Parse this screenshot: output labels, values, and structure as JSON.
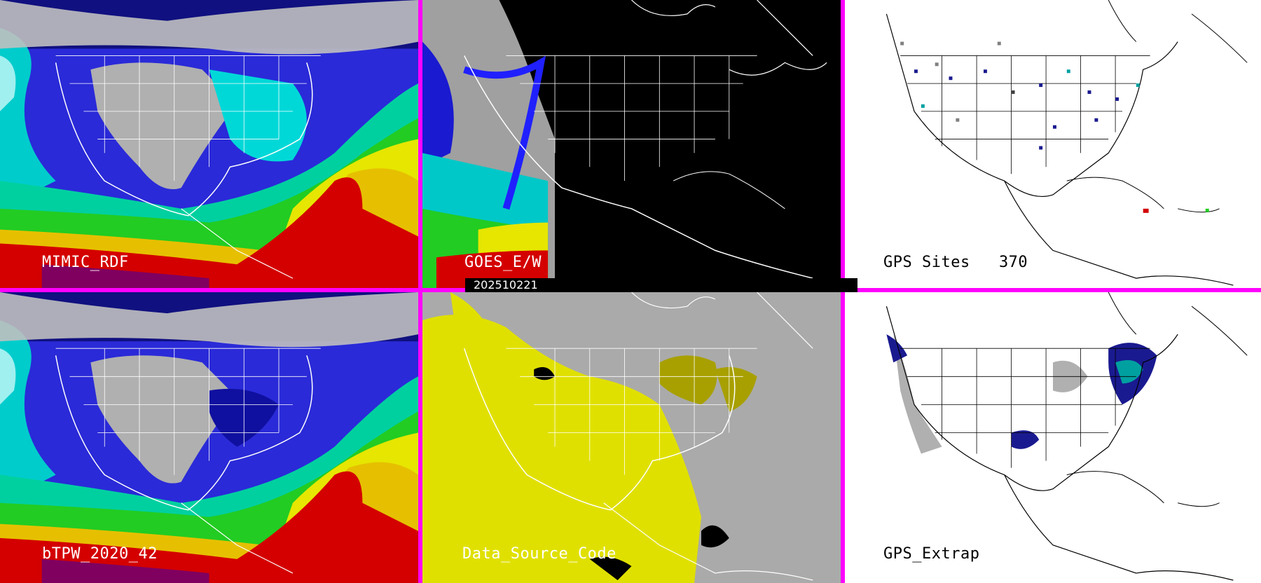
{
  "panels": [
    {
      "label": "MIMIC_RDF",
      "type": "tpw",
      "label_color": "#ffffff"
    },
    {
      "label": "GOES_E/W",
      "type": "goes",
      "label_color": "#ffffff"
    },
    {
      "label": "GPS Sites   370",
      "type": "gps_sites",
      "label_color": "#000000"
    },
    {
      "label": "bTPW_2020_42",
      "type": "tpw",
      "label_color": "#ffffff"
    },
    {
      "label": "Data_Source_Code",
      "type": "source",
      "label_color": "#ffffff"
    },
    {
      "label": "GPS_Extrap",
      "type": "gps_extrap",
      "label_color": "#000000"
    }
  ],
  "date_label": "202510221",
  "colors": {
    "separator": "#ff00ff",
    "ocean_tpw_high": "#d40000",
    "ocean_tpw_mid": "#e6e600",
    "ocean_tpw_low": "#00e0e0",
    "land_dry": "#b0b0b0",
    "goes_background": "#000000",
    "source_background": "#aaaaaa",
    "source_yellow": "#e0e000",
    "gps_background": "#ffffff"
  }
}
